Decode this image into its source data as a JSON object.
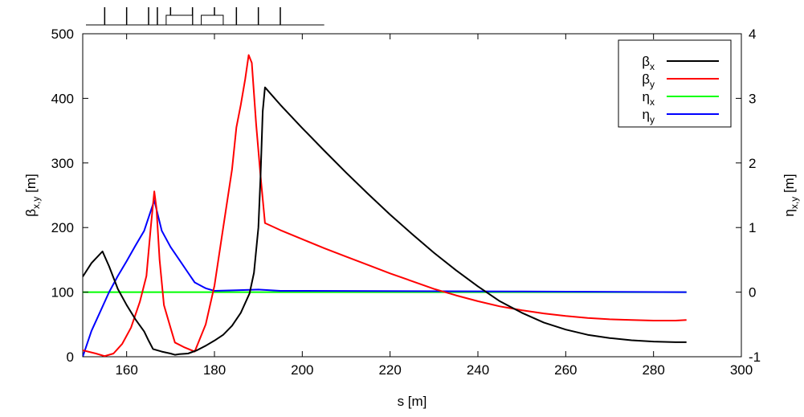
{
  "chart_data": {
    "type": "line",
    "title": "",
    "xlabel": "s [m]",
    "ylabel_left": {
      "base": "β",
      "sub": "x,y",
      "unit": " [m]"
    },
    "ylabel_right": {
      "base": "η",
      "sub": "x,y",
      "unit": " [m]"
    },
    "xlim": [
      150,
      300
    ],
    "ylim_left": [
      0,
      500
    ],
    "ylim_right": [
      -1,
      4
    ],
    "x_ticks": [
      160,
      180,
      200,
      220,
      240,
      260,
      280,
      300
    ],
    "y_left_ticks": [
      0,
      100,
      200,
      300,
      400,
      500
    ],
    "y_right_ticks": [
      -1,
      0,
      1,
      2,
      3,
      4
    ],
    "grid": false,
    "legend_position": "top-right",
    "series": [
      {
        "name": "βx",
        "name_base": "β",
        "name_sub": "x",
        "axis": "left",
        "color": "#000000",
        "points": [
          [
            150,
            124
          ],
          [
            152,
            145
          ],
          [
            154.5,
            163
          ],
          [
            156,
            140
          ],
          [
            158,
            105
          ],
          [
            160,
            80
          ],
          [
            162,
            58
          ],
          [
            164,
            39
          ],
          [
            165,
            25
          ],
          [
            166,
            12
          ],
          [
            168,
            8
          ],
          [
            170,
            5
          ],
          [
            171,
            3
          ],
          [
            172,
            4
          ],
          [
            174,
            5
          ],
          [
            176,
            10
          ],
          [
            178,
            17
          ],
          [
            180,
            25
          ],
          [
            182,
            34
          ],
          [
            184,
            48
          ],
          [
            186,
            68
          ],
          [
            188,
            98
          ],
          [
            189,
            130
          ],
          [
            190,
            200
          ],
          [
            190.5,
            280
          ],
          [
            191,
            380
          ],
          [
            191.5,
            417
          ],
          [
            195,
            390
          ],
          [
            200,
            354
          ],
          [
            205,
            319
          ],
          [
            210,
            285
          ],
          [
            215,
            252
          ],
          [
            220,
            220
          ],
          [
            225,
            190
          ],
          [
            230,
            161
          ],
          [
            235,
            134
          ],
          [
            240,
            109
          ],
          [
            245,
            86
          ],
          [
            250,
            68
          ],
          [
            255,
            53
          ],
          [
            260,
            42
          ],
          [
            265,
            34
          ],
          [
            270,
            29
          ],
          [
            275,
            25.5
          ],
          [
            280,
            23.5
          ],
          [
            285,
            22.5
          ],
          [
            287.5,
            22.5
          ]
        ]
      },
      {
        "name": "βy",
        "name_base": "β",
        "name_sub": "y",
        "axis": "left",
        "color": "#ff0000",
        "points": [
          [
            150,
            10
          ],
          [
            153,
            5
          ],
          [
            155,
            1
          ],
          [
            157,
            5
          ],
          [
            159,
            20
          ],
          [
            161,
            45
          ],
          [
            163,
            85
          ],
          [
            164.5,
            125
          ],
          [
            165.5,
            200
          ],
          [
            166.3,
            256
          ],
          [
            166.8,
            230
          ],
          [
            167.5,
            150
          ],
          [
            168.5,
            80
          ],
          [
            170,
            45
          ],
          [
            171,
            22
          ],
          [
            173,
            15
          ],
          [
            175.5,
            8
          ],
          [
            178,
            50
          ],
          [
            180,
            110
          ],
          [
            182,
            200
          ],
          [
            184,
            290
          ],
          [
            185,
            355
          ],
          [
            186,
            390
          ],
          [
            187,
            430
          ],
          [
            187.8,
            467
          ],
          [
            188.5,
            455
          ],
          [
            189.5,
            360
          ],
          [
            190.5,
            280
          ],
          [
            191.5,
            207
          ],
          [
            195,
            196
          ],
          [
            200,
            182
          ],
          [
            205,
            168
          ],
          [
            210,
            155
          ],
          [
            215,
            142
          ],
          [
            220,
            129
          ],
          [
            225,
            117
          ],
          [
            230,
            105
          ],
          [
            235,
            95
          ],
          [
            240,
            86
          ],
          [
            245,
            78
          ],
          [
            250,
            72
          ],
          [
            255,
            67
          ],
          [
            260,
            63
          ],
          [
            265,
            60
          ],
          [
            270,
            58
          ],
          [
            275,
            57
          ],
          [
            280,
            56
          ],
          [
            285,
            56
          ],
          [
            287.5,
            57
          ]
        ]
      },
      {
        "name": "ηx",
        "name_base": "η",
        "name_sub": "x",
        "axis": "right",
        "color": "#00ff00",
        "points": [
          [
            150,
            0
          ],
          [
            287.5,
            0
          ]
        ]
      },
      {
        "name": "ηy",
        "name_base": "η",
        "name_sub": "y",
        "axis": "right",
        "color": "#0000ff",
        "points": [
          [
            150,
            -1.0
          ],
          [
            152,
            -0.6
          ],
          [
            154,
            -0.3
          ],
          [
            156,
            0.0
          ],
          [
            158,
            0.25
          ],
          [
            160,
            0.48
          ],
          [
            162,
            0.72
          ],
          [
            164,
            0.95
          ],
          [
            166.3,
            1.42
          ],
          [
            168,
            0.95
          ],
          [
            170,
            0.7
          ],
          [
            172,
            0.5
          ],
          [
            174,
            0.3
          ],
          [
            175.5,
            0.15
          ],
          [
            178,
            0.06
          ],
          [
            180,
            0.02
          ],
          [
            185,
            0.03
          ],
          [
            190,
            0.04
          ],
          [
            195,
            0.02
          ],
          [
            200,
            0.02
          ],
          [
            250,
            0.01
          ],
          [
            287.5,
            0.0
          ]
        ]
      }
    ],
    "lattice_elements": {
      "thin_s": [
        155,
        160,
        165,
        167,
        170,
        175,
        180,
        185,
        190,
        195
      ],
      "boxes": [
        [
          169,
          175
        ],
        [
          177,
          182
        ]
      ]
    }
  }
}
